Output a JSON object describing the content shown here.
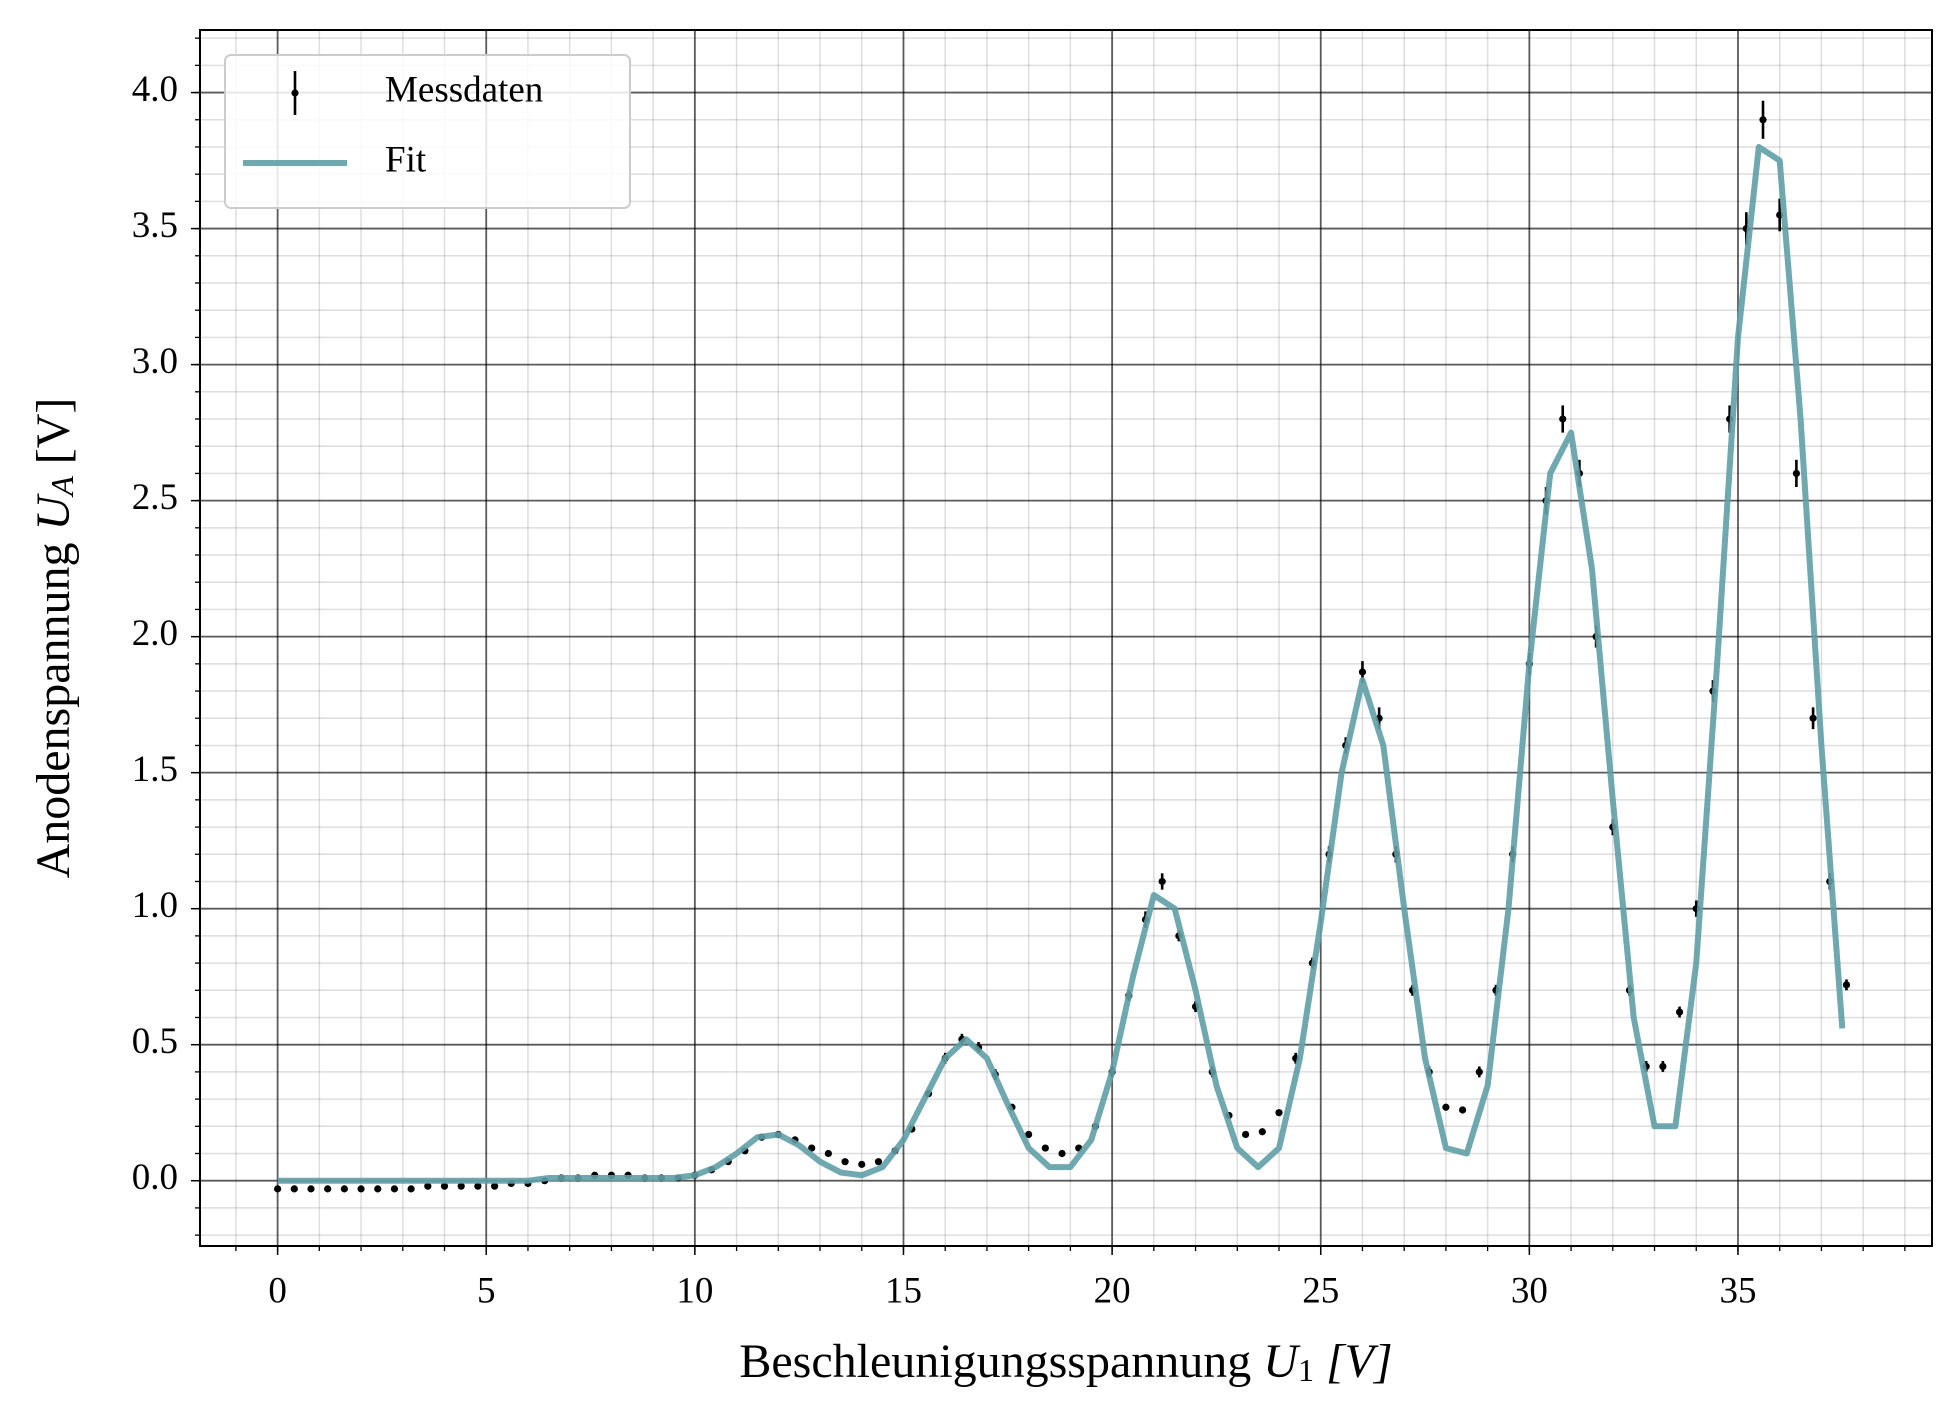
{
  "chart_data": {
    "type": "errorbar-fit",
    "xlabel": {
      "text": "Beschleunigungsspannung",
      "symbol": "U",
      "subscript": "1",
      "unit": "[V]"
    },
    "ylabel": {
      "text": "Anodenspannung",
      "symbol": "U",
      "subscript": "A",
      "unit": "[V]"
    },
    "xlim": [
      -1.86,
      39.65
    ],
    "ylim": [
      -0.24,
      4.23
    ],
    "xticks": [
      0,
      5,
      10,
      15,
      20,
      25,
      30,
      35
    ],
    "yticks": [
      {
        "value": 0,
        "label": "0.0"
      },
      0.5,
      {
        "value": 1,
        "label": "1.0"
      },
      1.5,
      {
        "value": 2,
        "label": "2.0"
      },
      2.5,
      {
        "value": 3,
        "label": "3.0"
      },
      3.5,
      {
        "value": 4,
        "label": "4.0"
      }
    ],
    "xminor": 1,
    "yminor": 0.1,
    "grid": true,
    "legend": "upper left",
    "series": [
      {
        "name": "Messdaten",
        "color": "#000000",
        "style": "errorbar",
        "x": [
          0,
          0.4,
          0.8,
          1.2,
          1.6,
          2.0,
          2.4,
          2.8,
          3.2,
          3.6,
          4.0,
          4.4,
          4.8,
          5.2,
          5.6,
          6.0,
          6.4,
          6.8,
          7.2,
          7.6,
          8.0,
          8.4,
          8.8,
          9.2,
          9.6,
          10.0,
          10.4,
          10.8,
          11.2,
          11.6,
          12.0,
          12.4,
          12.8,
          13.2,
          13.6,
          14.0,
          14.4,
          14.8,
          15.2,
          15.6,
          16.0,
          16.4,
          16.8,
          17.2,
          17.6,
          18.0,
          18.4,
          18.8,
          19.2,
          19.6,
          20.0,
          20.4,
          20.8,
          21.2,
          21.6,
          22.0,
          22.4,
          22.8,
          23.2,
          23.6,
          24.0,
          24.4,
          24.8,
          25.2,
          25.6,
          26.0,
          26.4,
          26.8,
          27.2,
          27.6,
          28.0,
          28.4,
          28.8,
          29.2,
          29.6,
          30.0,
          30.4,
          30.8,
          31.2,
          31.6,
          32.0,
          32.4,
          32.8,
          33.2,
          33.6,
          34.0,
          34.4,
          34.8,
          35.2,
          35.6,
          36.0,
          36.4,
          36.8,
          37.2,
          37.6
        ],
        "values": [
          -0.03,
          -0.03,
          -0.03,
          -0.03,
          -0.03,
          -0.03,
          -0.03,
          -0.03,
          -0.03,
          -0.02,
          -0.02,
          -0.02,
          -0.02,
          -0.02,
          -0.01,
          -0.01,
          0.0,
          0.01,
          0.01,
          0.02,
          0.02,
          0.02,
          0.01,
          0.01,
          0.01,
          0.02,
          0.04,
          0.07,
          0.11,
          0.16,
          0.17,
          0.15,
          0.12,
          0.1,
          0.07,
          0.06,
          0.07,
          0.11,
          0.19,
          0.32,
          0.45,
          0.52,
          0.49,
          0.39,
          0.27,
          0.17,
          0.12,
          0.1,
          0.12,
          0.2,
          0.4,
          0.68,
          0.96,
          1.1,
          0.9,
          0.64,
          0.4,
          0.24,
          0.17,
          0.18,
          0.25,
          0.45,
          0.8,
          1.2,
          1.6,
          1.87,
          1.7,
          1.2,
          0.7,
          0.4,
          0.27,
          0.26,
          0.4,
          0.7,
          1.2,
          1.9,
          2.5,
          2.8,
          2.6,
          2.0,
          1.3,
          0.7,
          0.42,
          0.42,
          0.62,
          1.0,
          1.8,
          2.8,
          3.5,
          3.9,
          3.55,
          2.6,
          1.7,
          1.1,
          0.72
        ],
        "errors": [
          0.01,
          0.01,
          0.01,
          0.01,
          0.01,
          0.01,
          0.01,
          0.01,
          0.01,
          0.01,
          0.01,
          0.01,
          0.01,
          0.01,
          0.01,
          0.01,
          0.01,
          0.01,
          0.01,
          0.01,
          0.01,
          0.01,
          0.01,
          0.01,
          0.01,
          0.01,
          0.01,
          0.01,
          0.01,
          0.01,
          0.01,
          0.01,
          0.01,
          0.01,
          0.01,
          0.01,
          0.01,
          0.01,
          0.01,
          0.01,
          0.02,
          0.02,
          0.02,
          0.02,
          0.01,
          0.01,
          0.01,
          0.01,
          0.01,
          0.01,
          0.02,
          0.02,
          0.03,
          0.03,
          0.02,
          0.02,
          0.02,
          0.01,
          0.01,
          0.01,
          0.01,
          0.02,
          0.02,
          0.03,
          0.03,
          0.04,
          0.04,
          0.03,
          0.02,
          0.02,
          0.01,
          0.01,
          0.02,
          0.02,
          0.03,
          0.04,
          0.05,
          0.05,
          0.05,
          0.04,
          0.03,
          0.02,
          0.02,
          0.02,
          0.02,
          0.03,
          0.04,
          0.05,
          0.06,
          0.07,
          0.06,
          0.05,
          0.04,
          0.03,
          0.02
        ]
      },
      {
        "name": "Fit",
        "color": "#5f9ea6",
        "style": "line",
        "x": [
          0,
          0.5,
          1,
          1.5,
          2,
          2.5,
          3,
          3.5,
          4,
          4.5,
          5,
          5.5,
          6,
          6.5,
          7,
          7.5,
          8,
          8.5,
          9,
          9.5,
          10,
          10.5,
          11,
          11.5,
          12,
          12.5,
          13,
          13.5,
          14,
          14.5,
          15,
          15.5,
          16,
          16.5,
          17,
          17.5,
          18,
          18.5,
          19,
          19.5,
          20,
          20.5,
          21,
          21.5,
          22,
          22.5,
          23,
          23.5,
          24,
          24.5,
          25,
          25.5,
          26,
          26.5,
          27,
          27.5,
          28,
          28.5,
          29,
          29.5,
          30,
          30.5,
          31,
          31.5,
          32,
          32.5,
          33,
          33.5,
          34,
          34.5,
          35,
          35.5,
          36,
          36.5,
          37,
          37.5
        ],
        "values": [
          0,
          0,
          0,
          0,
          0,
          0,
          0,
          0,
          0,
          0,
          0,
          0,
          0,
          0.01,
          0.01,
          0.01,
          0.01,
          0.01,
          0.01,
          0.01,
          0.02,
          0.05,
          0.1,
          0.16,
          0.17,
          0.13,
          0.07,
          0.03,
          0.02,
          0.05,
          0.15,
          0.3,
          0.45,
          0.52,
          0.45,
          0.28,
          0.12,
          0.05,
          0.05,
          0.15,
          0.4,
          0.75,
          1.05,
          1.0,
          0.7,
          0.35,
          0.12,
          0.05,
          0.12,
          0.45,
          0.95,
          1.5,
          1.84,
          1.6,
          1.0,
          0.45,
          0.12,
          0.1,
          0.35,
          1.0,
          1.9,
          2.6,
          2.75,
          2.25,
          1.4,
          0.6,
          0.2,
          0.2,
          0.8,
          1.9,
          3.1,
          3.8,
          3.75,
          2.8,
          1.6,
          0.56
        ]
      }
    ]
  }
}
